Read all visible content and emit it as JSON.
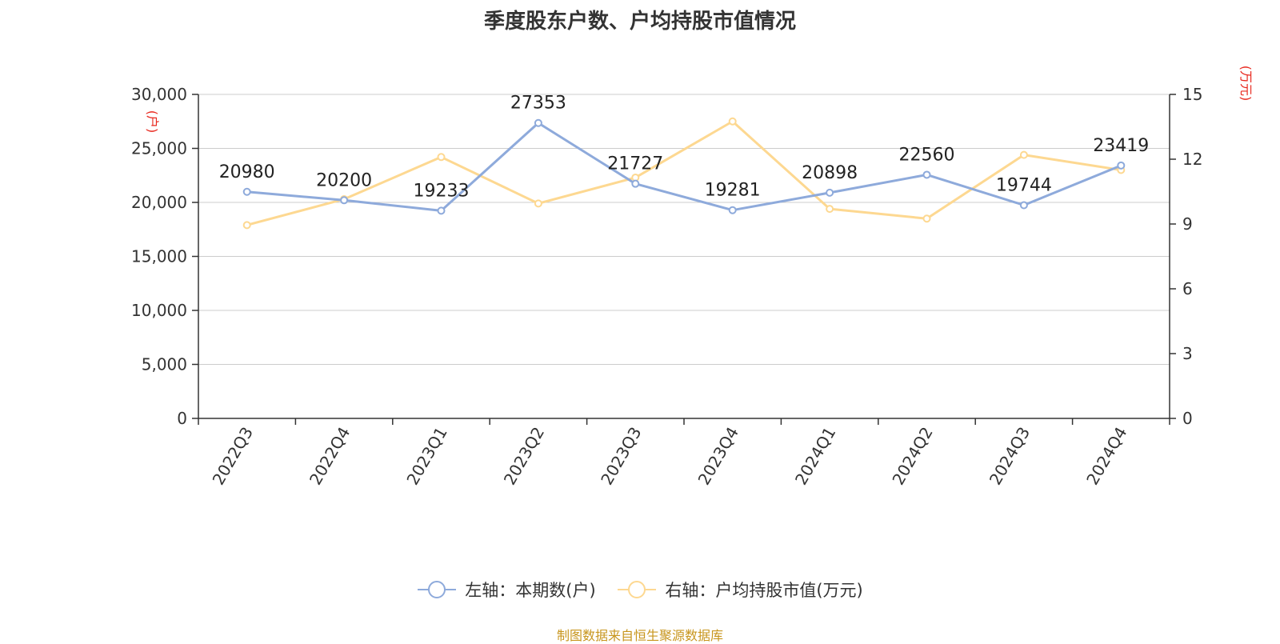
{
  "title": "季度股东户数、户均持股市值情况",
  "source": "制图数据来自恒生聚源数据库",
  "colors": {
    "left_series": "#8eaadb",
    "right_series": "#fdd891",
    "unit": "#e8281e",
    "source": "#c8961e",
    "grid": "#cccccc"
  },
  "chart_data": {
    "type": "line",
    "title": "季度股东户数、户均持股市值情况",
    "categories": [
      "2022Q3",
      "2022Q4",
      "2023Q1",
      "2023Q2",
      "2023Q3",
      "2023Q4",
      "2024Q1",
      "2024Q2",
      "2024Q3",
      "2024Q4"
    ],
    "left_axis": {
      "unit": "(户)",
      "range": [
        0,
        30000
      ],
      "ticks": [
        "0",
        "5,000",
        "10,000",
        "15,000",
        "20,000",
        "25,000",
        "30,000"
      ]
    },
    "right_axis": {
      "unit": "(万元)",
      "range": [
        0,
        15
      ],
      "ticks": [
        "0",
        "3",
        "6",
        "9",
        "12",
        "15"
      ]
    },
    "grid": true,
    "legend_position": "bottom",
    "series": [
      {
        "name": "左轴：本期数(户)",
        "axis": "left",
        "values": [
          20980,
          20200,
          19233,
          27353,
          21727,
          19281,
          20898,
          22560,
          19744,
          23419
        ],
        "labels": [
          "20980",
          "20200",
          "19233",
          "27353",
          "21727",
          "19281",
          "20898",
          "22560",
          "19744",
          "23419"
        ]
      },
      {
        "name": "右轴：户均持股市值(万元)",
        "axis": "right",
        "values": [
          8.95,
          10.15,
          12.1,
          9.95,
          11.15,
          13.75,
          9.7,
          9.25,
          12.2,
          11.5
        ]
      }
    ]
  }
}
